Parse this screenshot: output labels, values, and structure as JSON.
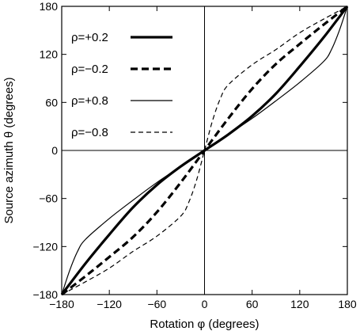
{
  "chart_data": {
    "type": "line",
    "xlabel": "Rotation φ (degrees)",
    "ylabel": "Source azimuth θ (degrees)",
    "xlim": [
      -180,
      180
    ],
    "ylim": [
      -180,
      180
    ],
    "xticks": [
      "−180",
      "−120",
      "−60",
      "0",
      "60",
      "120",
      "180"
    ],
    "yticks": [
      "−180",
      "−120",
      "−60",
      "0",
      "60",
      "120",
      "180"
    ],
    "grid": false,
    "zero_lines": true,
    "legend_position": "top-left",
    "series": [
      {
        "name": "ρ=+0.2",
        "style": "solid-thick",
        "x": [
          -180,
          -150,
          -120,
          -90,
          -60,
          -30,
          0,
          30,
          60,
          90,
          120,
          150,
          180
        ],
        "y": [
          -180,
          -141,
          -105,
          -71,
          -43,
          -20,
          0,
          20,
          43,
          71,
          105,
          141,
          180
        ]
      },
      {
        "name": "ρ=−0.2",
        "style": "dashed-thick",
        "x": [
          -180,
          -150,
          -120,
          -90,
          -60,
          -30,
          0,
          30,
          60,
          90,
          120,
          150,
          180
        ],
        "y": [
          -180,
          -157,
          -133,
          -108,
          -77,
          -40,
          0,
          40,
          77,
          108,
          133,
          157,
          180
        ]
      },
      {
        "name": "ρ=+0.8",
        "style": "solid-thin",
        "x": [
          -180,
          -170,
          -160,
          -150,
          -120,
          -90,
          -60,
          -30,
          0,
          30,
          60,
          90,
          120,
          150,
          160,
          170,
          180
        ],
        "y": [
          -180,
          -150,
          -126,
          -111,
          -85,
          -62,
          -40,
          -20,
          0,
          20,
          40,
          62,
          85,
          111,
          126,
          150,
          180
        ]
      },
      {
        "name": "ρ=−0.8",
        "style": "dashed-thin",
        "x": [
          -180,
          -150,
          -120,
          -90,
          -60,
          -30,
          -20,
          -10,
          0,
          10,
          20,
          30,
          60,
          90,
          120,
          150,
          180
        ],
        "y": [
          -180,
          -164,
          -147,
          -126,
          -107,
          -82,
          -65,
          -37,
          0,
          37,
          65,
          82,
          107,
          126,
          147,
          164,
          180
        ]
      }
    ]
  }
}
